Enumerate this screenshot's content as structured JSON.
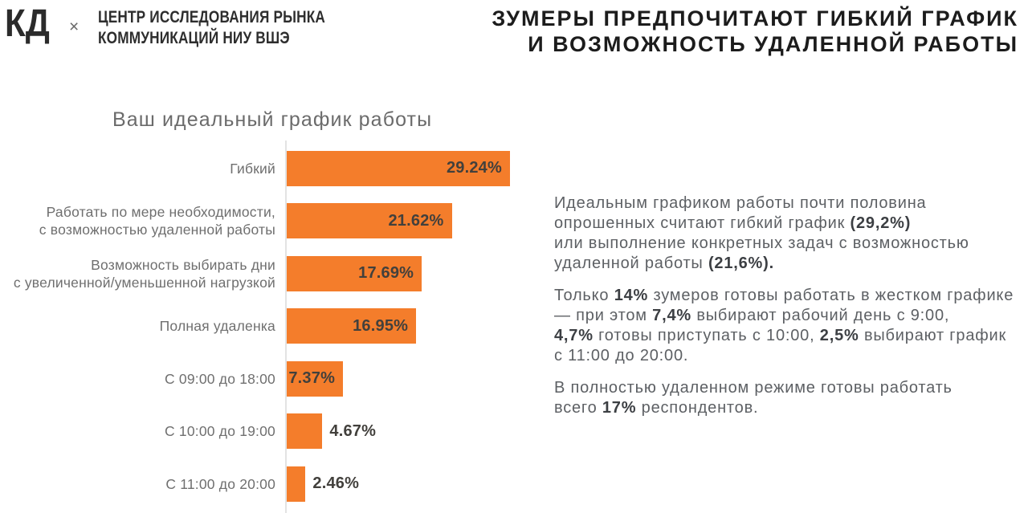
{
  "header": {
    "logo_kd": "КД",
    "logo_x": "×",
    "logo_org": "ЦЕНТР ИССЛЕДОВАНИЯ РЫНКА\nКОММУНИКАЦИЙ НИУ ВШЭ",
    "title": "ЗУМЕРЫ ПРЕДПОЧИТАЮТ ГИБКИЙ ГРАФИК\nИ ВОЗМОЖНОСТЬ УДАЛЕННОЙ РАБОТЫ"
  },
  "chart_data": {
    "type": "bar",
    "orientation": "horizontal",
    "title": "Ваш идеальный график работы",
    "categories": [
      "Гибкий",
      "Работать по мере необходимости,\nс возможностью удаленной работы",
      "Возможность выбирать дни\nс увеличенной/уменьшенной нагрузкой",
      "Полная удаленка",
      "С 09:00 до 18:00",
      "С 10:00 до 19:00",
      "С 11:00 до 20:00"
    ],
    "values": [
      29.24,
      21.62,
      17.69,
      16.95,
      7.37,
      4.67,
      2.46
    ],
    "value_labels": [
      "29.24%",
      "21.62%",
      "17.69%",
      "16.95%",
      "7.37%",
      "4.67%",
      "2.46%"
    ],
    "label_position": [
      "inside",
      "inside",
      "inside",
      "inside",
      "inside",
      "outside",
      "outside"
    ],
    "xlabel": "",
    "ylabel": "",
    "xlim": [
      0,
      30
    ],
    "grid": false,
    "legend": false,
    "bar_color": "#F47D2B"
  },
  "summary": {
    "paragraphs": [
      [
        {
          "t": "Идеальным графиком работы почти половина"
        },
        {
          "br": true
        },
        {
          "t": "опрошенных считают гибкий график "
        },
        {
          "t": "(29,2%)",
          "b": true
        },
        {
          "br": true
        },
        {
          "t": "или выполнение конкретных задач с возможностью"
        },
        {
          "br": true
        },
        {
          "t": "удаленной работы "
        },
        {
          "t": "(21,6%).",
          "b": true
        }
      ],
      [
        {
          "t": "Только "
        },
        {
          "t": "14%",
          "b": true
        },
        {
          "t": " зумеров готовы работать в жестком графике"
        },
        {
          "br": true
        },
        {
          "t": "— при этом "
        },
        {
          "t": "7,4%",
          "b": true
        },
        {
          "t": " выбирают рабочий день с 9:00,"
        },
        {
          "br": true
        },
        {
          "t": "4,7%",
          "b": true
        },
        {
          "t": " готовы приступать с 10:00, "
        },
        {
          "t": "2,5%",
          "b": true
        },
        {
          "t": " выбирают график"
        },
        {
          "br": true
        },
        {
          "t": "с 11:00 до 20:00."
        }
      ],
      [
        {
          "t": "В полностью удаленном режиме готовы работать"
        },
        {
          "br": true
        },
        {
          "t": "всего "
        },
        {
          "t": "17%",
          "b": true
        },
        {
          "t": " респондентов."
        }
      ]
    ]
  },
  "colors": {
    "accent_orange": "#F47D2B",
    "title_text": "#1C1C1C",
    "body_text": "#5D6064",
    "muted_text": "#6F6F6F",
    "value_text": "#42403C",
    "axis_line": "#E3E3E3"
  }
}
